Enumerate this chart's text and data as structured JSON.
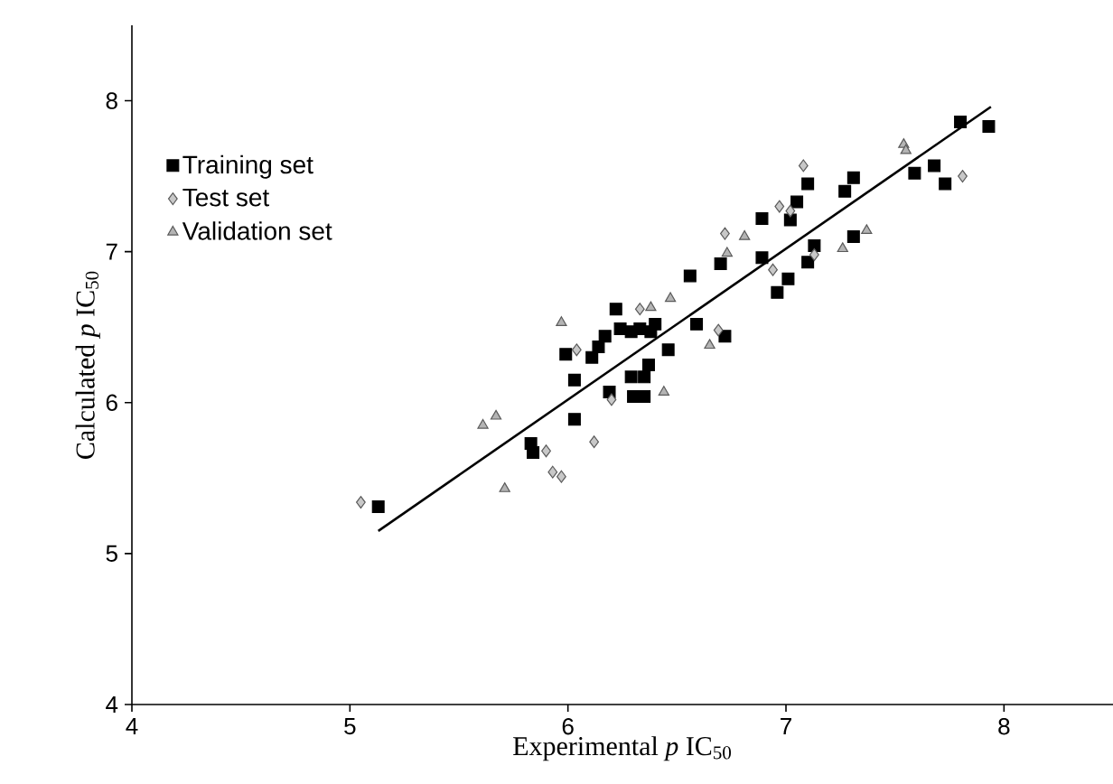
{
  "chart_data": {
    "type": "scatter",
    "xlabel": "Experimental *p* IC$_{50}$",
    "ylabel": "Calculated *p* IC$_{50}$",
    "xlim": [
      4,
      8.5
    ],
    "ylim": [
      4,
      8.5
    ],
    "xticks": [
      4,
      5,
      6,
      7,
      8
    ],
    "yticks": [
      4,
      5,
      6,
      7,
      8
    ],
    "legend": "top left",
    "grid": false,
    "series": [
      {
        "name": "Training set",
        "color": "#000000",
        "marker": "square",
        "x": [
          5.13,
          5.83,
          5.84,
          6.03,
          5.99,
          6.03,
          6.11,
          6.14,
          6.17,
          6.19,
          6.22,
          6.24,
          6.29,
          6.33,
          6.38,
          6.4,
          6.29,
          6.3,
          6.35,
          6.37,
          6.35,
          6.46,
          6.56,
          6.59,
          6.7,
          6.72,
          6.89,
          6.89,
          6.96,
          7.01,
          7.02,
          7.05,
          7.1,
          7.1,
          7.13,
          7.27,
          7.31,
          7.31,
          7.59,
          7.68,
          7.73,
          7.8,
          7.93
        ],
        "values": [
          5.31,
          5.73,
          5.67,
          5.89,
          6.32,
          6.15,
          6.3,
          6.37,
          6.44,
          6.07,
          6.62,
          6.49,
          6.47,
          6.49,
          6.47,
          6.52,
          6.17,
          6.04,
          6.04,
          6.25,
          6.17,
          6.35,
          6.84,
          6.52,
          6.92,
          6.44,
          7.22,
          6.96,
          6.73,
          6.82,
          7.21,
          7.33,
          7.45,
          6.93,
          7.04,
          7.4,
          7.49,
          7.1,
          7.52,
          7.57,
          7.45,
          7.86,
          7.83
        ]
      },
      {
        "name": "Test set",
        "color": "#c8c8c8",
        "marker": "diamond",
        "x": [
          5.05,
          5.9,
          5.93,
          5.97,
          6.04,
          6.12,
          6.2,
          6.33,
          6.69,
          6.72,
          6.94,
          6.97,
          7.02,
          7.08,
          7.13,
          7.81
        ],
        "values": [
          5.34,
          5.68,
          5.54,
          5.51,
          6.35,
          5.74,
          6.02,
          6.62,
          6.48,
          7.12,
          6.88,
          7.3,
          7.27,
          7.57,
          6.98,
          7.5
        ]
      },
      {
        "name": "Validation set",
        "color": "#b4b4b4",
        "marker": "triangle",
        "x": [
          5.61,
          5.67,
          5.71,
          5.97,
          6.38,
          6.47,
          6.44,
          6.65,
          6.73,
          6.81,
          7.26,
          7.37,
          7.54,
          7.55
        ],
        "values": [
          5.85,
          5.91,
          5.43,
          6.53,
          6.63,
          6.69,
          6.07,
          6.38,
          6.99,
          7.1,
          7.02,
          7.14,
          7.71,
          7.67
        ]
      },
      {
        "type": "line",
        "color": "#000000",
        "marker": "none",
        "line_style": "solid",
        "x": [
          5.13,
          7.94
        ],
        "values": [
          5.15,
          7.96
        ]
      }
    ]
  }
}
